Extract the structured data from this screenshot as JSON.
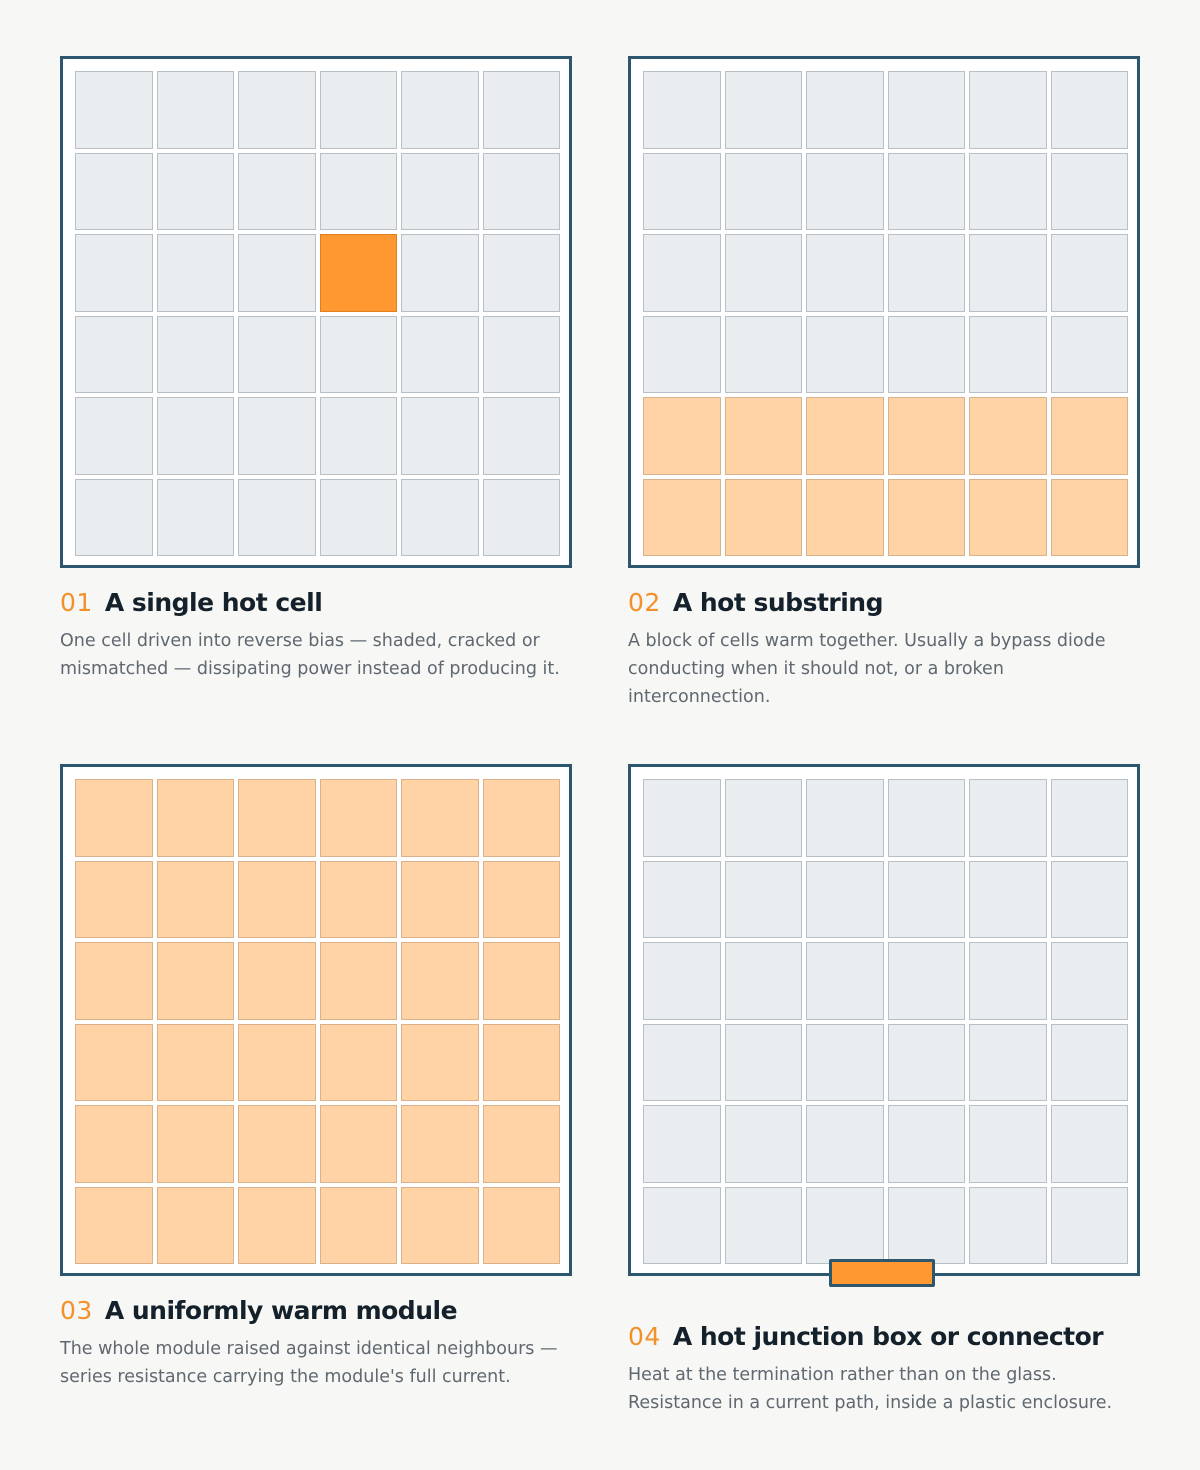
{
  "cards": [
    {
      "number": "01",
      "title": "A single hot cell",
      "description": "One cell driven into reverse bias — shaded, cracked or mismatched — dissipating power instead of producing it.",
      "module": {
        "rows": 6,
        "cols": 6,
        "hot_cells": [
          [
            2,
            3
          ]
        ],
        "warm_rows": [],
        "all_warm": false,
        "junction_box_hot": false
      }
    },
    {
      "number": "02",
      "title": "A hot substring",
      "description": "A block of cells warm together. Usually a bypass diode conducting when it should not, or a broken interconnection.",
      "module": {
        "rows": 6,
        "cols": 6,
        "hot_cells": [],
        "warm_rows": [
          4,
          5
        ],
        "all_warm": false,
        "junction_box_hot": false
      }
    },
    {
      "number": "03",
      "title": "A uniformly warm module",
      "description": "The whole module raised against identical neighbours — series resistance carrying the module's full current.",
      "module": {
        "rows": 6,
        "cols": 6,
        "hot_cells": [],
        "warm_rows": [],
        "all_warm": true,
        "junction_box_hot": false
      }
    },
    {
      "number": "04",
      "title": "A hot junction box or connector",
      "description": "Heat at the termination rather than on the glass. Resistance in a current path, inside a plastic enclosure.",
      "module": {
        "rows": 6,
        "cols": 6,
        "hot_cells": [],
        "warm_rows": [],
        "all_warm": false,
        "junction_box_hot": true
      }
    }
  ],
  "colors": {
    "frame": "#2d566f",
    "cell_normal": "#e9edf0",
    "cell_warm": "#ffd3a6",
    "cell_hot": "#ff9830",
    "number_accent": "#f39029",
    "title_text": "#14212b",
    "body_text": "#5f6870",
    "background": "#f7f7f5"
  }
}
